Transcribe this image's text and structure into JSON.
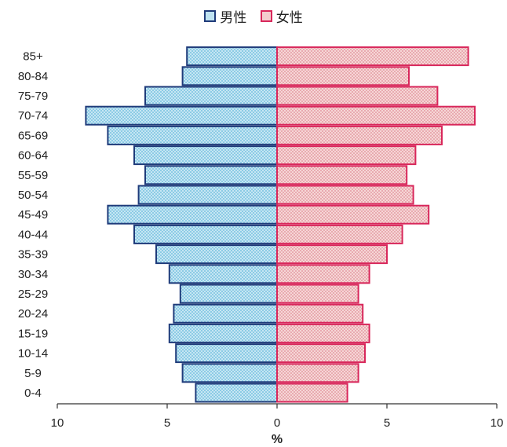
{
  "legend": {
    "male_label": "男性",
    "female_label": "女性",
    "male_color": "#1f3b7a",
    "female_color": "#d8275b"
  },
  "chart_data": {
    "type": "bar",
    "orientation": "horizontal",
    "layout": "population-pyramid",
    "categories": [
      "85+",
      "80-84",
      "75-79",
      "70-74",
      "65-69",
      "60-64",
      "55-59",
      "50-54",
      "45-49",
      "40-44",
      "35-39",
      "30-34",
      "25-29",
      "20-24",
      "15-19",
      "10-14",
      "5-9",
      "0-4"
    ],
    "series": [
      {
        "name": "男性",
        "side": "left",
        "values": [
          4.1,
          4.3,
          6.0,
          8.7,
          7.7,
          6.5,
          6.0,
          6.3,
          7.7,
          6.5,
          5.5,
          4.9,
          4.4,
          4.7,
          4.9,
          4.6,
          4.3,
          3.7
        ]
      },
      {
        "name": "女性",
        "side": "right",
        "values": [
          8.7,
          6.0,
          7.3,
          9.0,
          7.5,
          6.3,
          5.9,
          6.2,
          6.9,
          5.7,
          5.0,
          4.2,
          3.7,
          3.9,
          4.2,
          4.0,
          3.7,
          3.2
        ]
      }
    ],
    "x_ticks": [
      {
        "label": "10",
        "value": -10,
        "color": "#c0281f"
      },
      {
        "label": "5",
        "value": -5,
        "color": "#c0281f"
      },
      {
        "label": "0",
        "value": 0,
        "color": "#222222"
      },
      {
        "label": "5",
        "value": 5,
        "color": "#222222"
      },
      {
        "label": "10",
        "value": 10,
        "color": "#222222"
      }
    ],
    "xlim": [
      -10,
      10
    ],
    "xlabel": "%",
    "title": "",
    "legend_position": "top-center",
    "grid": false
  }
}
